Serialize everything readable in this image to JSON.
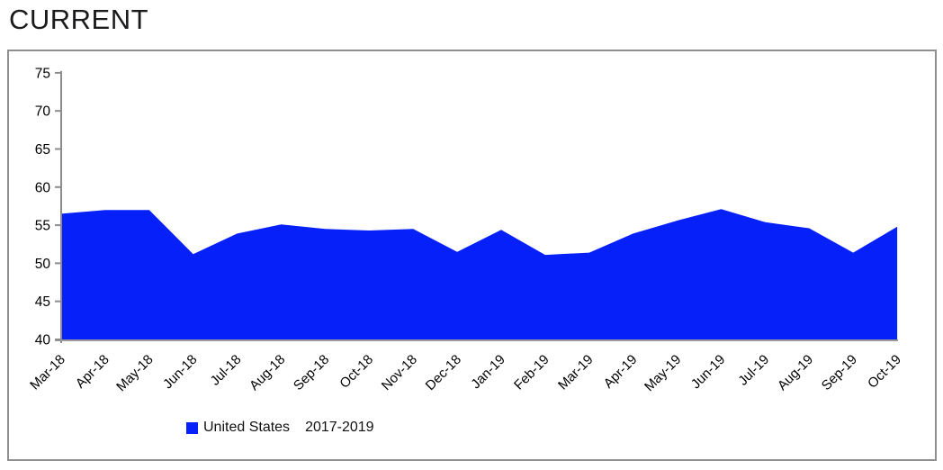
{
  "page": {
    "title": "CURRENT"
  },
  "legend": {
    "items": [
      {
        "label": "United States",
        "swatch": "#0520F8"
      },
      {
        "label": "2017-2019",
        "swatch": null
      }
    ]
  },
  "chart_data": {
    "type": "area",
    "title": "CURRENT",
    "categories": [
      "Mar-18",
      "Apr-18",
      "May-18",
      "Jun-18",
      "Jul-18",
      "Aug-18",
      "Sep-18",
      "Oct-18",
      "Nov-18",
      "Dec-18",
      "Jan-19",
      "Feb-19",
      "Mar-19",
      "Apr-19",
      "May-19",
      "Jun-19",
      "Jul-19",
      "Aug-19",
      "Sep-19",
      "Oct-19"
    ],
    "series": [
      {
        "name": "United States 2017-2019",
        "values": [
          56.5,
          57.0,
          57.0,
          51.2,
          53.9,
          55.1,
          54.5,
          54.3,
          54.5,
          51.5,
          54.4,
          51.1,
          51.4,
          53.9,
          55.6,
          57.1,
          55.4,
          54.6,
          51.4,
          54.8
        ]
      }
    ],
    "xlabel": "",
    "ylabel": "",
    "ylim": [
      40,
      75
    ],
    "yticks": [
      40,
      45,
      50,
      55,
      60,
      65,
      70,
      75
    ],
    "grid": false,
    "legend_position": "bottom",
    "area_color": "#0520F8",
    "axis_color": "#8c8c8c",
    "tick_label_color": "#000000"
  }
}
